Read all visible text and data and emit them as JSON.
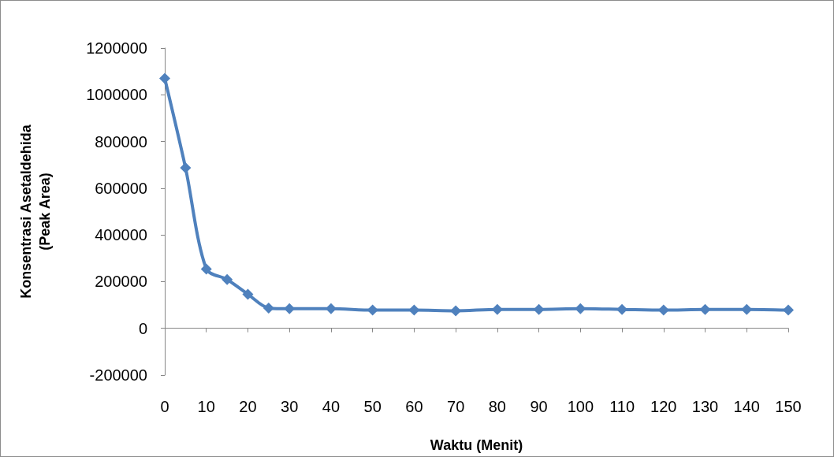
{
  "chart_data": {
    "type": "line",
    "xlabel": "Waktu (Menit)",
    "ylabel": "Konsentrasi Asetaldehida\n(Peak Area)",
    "x": [
      0,
      5,
      10,
      15,
      20,
      25,
      30,
      40,
      50,
      60,
      70,
      80,
      90,
      100,
      110,
      120,
      130,
      140,
      150
    ],
    "series": [
      {
        "color": "#4f81bd",
        "values": [
          1070000,
          687000,
          254000,
          209000,
          146000,
          87000,
          84000,
          84000,
          78000,
          78000,
          75000,
          81000,
          81000,
          84000,
          81000,
          78000,
          81000,
          81000,
          78000
        ]
      }
    ],
    "xlim": [
      0,
      150
    ],
    "xticks": [
      0,
      10,
      20,
      30,
      40,
      50,
      60,
      70,
      80,
      90,
      100,
      110,
      120,
      130,
      140,
      150
    ],
    "ylim": [
      -200000,
      1200000
    ],
    "yticks": [
      -200000,
      0,
      200000,
      400000,
      600000,
      800000,
      1000000,
      1200000
    ],
    "marker": "diamond",
    "line_style": "solid"
  }
}
